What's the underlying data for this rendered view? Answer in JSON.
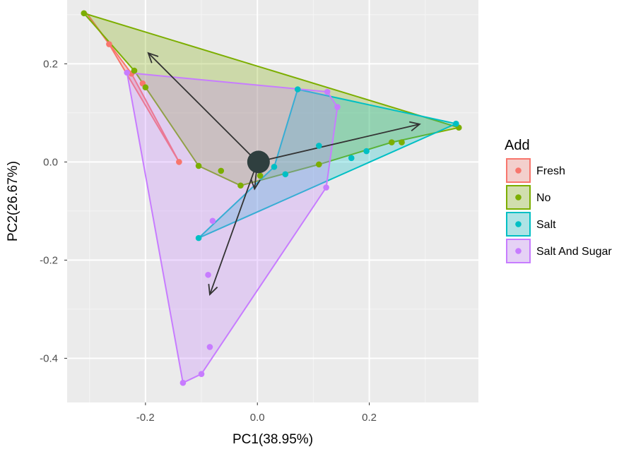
{
  "chart_data": {
    "type": "scatter",
    "subtype": "pca-biplot",
    "xlabel": "PC1(38.95%)",
    "ylabel": "PC2(26.67%)",
    "xlim": [
      -0.34,
      0.395
    ],
    "ylim": [
      -0.49,
      0.33
    ],
    "xticks": [
      -0.2,
      0.0,
      0.2
    ],
    "xtick_labels": [
      "-0.2",
      "0.0",
      "0.2"
    ],
    "yticks": [
      0.2,
      0.0,
      -0.2,
      -0.4
    ],
    "ytick_labels": [
      "0.2",
      "0.0",
      "-0.2",
      "-0.4"
    ],
    "grid": true,
    "legend": {
      "title": "Add",
      "position": "right"
    },
    "series": [
      {
        "name": "Fresh",
        "color": "#F8766D",
        "points": [
          [
            -0.265,
            0.24
          ],
          [
            -0.225,
            0.18
          ],
          [
            -0.205,
            0.16
          ],
          [
            -0.14,
            0.0
          ]
        ],
        "hull": [
          [
            -0.305,
            0.303
          ],
          [
            -0.265,
            0.24
          ],
          [
            -0.14,
            0.0
          ],
          [
            -0.225,
            0.18
          ]
        ]
      },
      {
        "name": "No",
        "color": "#7CAE00",
        "points": [
          [
            -0.31,
            0.303
          ],
          [
            -0.22,
            0.186
          ],
          [
            -0.2,
            0.152
          ],
          [
            -0.105,
            -0.008
          ],
          [
            -0.065,
            -0.018
          ],
          [
            -0.03,
            -0.048
          ],
          [
            0.005,
            -0.028
          ],
          [
            0.11,
            -0.005
          ],
          [
            0.24,
            0.04
          ],
          [
            0.258,
            0.04
          ],
          [
            0.36,
            0.07
          ]
        ],
        "hull": [
          [
            -0.31,
            0.303
          ],
          [
            0.36,
            0.07
          ],
          [
            0.24,
            0.04
          ],
          [
            0.11,
            -0.005
          ],
          [
            -0.03,
            -0.048
          ],
          [
            -0.105,
            -0.008
          ],
          [
            -0.22,
            0.186
          ]
        ]
      },
      {
        "name": "Salt",
        "color": "#00BFC4",
        "points": [
          [
            0.072,
            0.148
          ],
          [
            0.05,
            -0.025
          ],
          [
            0.11,
            0.033
          ],
          [
            0.168,
            0.008
          ],
          [
            0.195,
            0.022
          ],
          [
            0.355,
            0.078
          ],
          [
            -0.105,
            -0.155
          ],
          [
            0.03,
            -0.01
          ]
        ],
        "hull": [
          [
            0.072,
            0.148
          ],
          [
            0.355,
            0.078
          ],
          [
            -0.105,
            -0.155
          ],
          [
            0.03,
            -0.01
          ]
        ]
      },
      {
        "name": "Salt And Sugar",
        "color": "#C77CFF",
        "points": [
          [
            -0.233,
            0.182
          ],
          [
            0.125,
            0.143
          ],
          [
            0.143,
            0.112
          ],
          [
            0.123,
            -0.052
          ],
          [
            -0.08,
            -0.12
          ],
          [
            -0.088,
            -0.23
          ],
          [
            -0.085,
            -0.377
          ],
          [
            -0.1,
            -0.432
          ],
          [
            -0.133,
            -0.45
          ]
        ],
        "hull": [
          [
            -0.233,
            0.182
          ],
          [
            0.125,
            0.143
          ],
          [
            0.143,
            0.112
          ],
          [
            0.123,
            -0.052
          ],
          [
            -0.1,
            -0.432
          ],
          [
            -0.133,
            -0.45
          ]
        ]
      }
    ],
    "center_point": [
      0.002,
      0.0
    ],
    "arrows": [
      {
        "from": [
          0.0,
          0.0
        ],
        "to": [
          -0.195,
          0.222
        ]
      },
      {
        "from": [
          0.0,
          0.0
        ],
        "to": [
          0.29,
          0.077
        ]
      },
      {
        "from": [
          0.0,
          0.0
        ],
        "to": [
          -0.085,
          -0.27
        ]
      },
      {
        "from": [
          0.0,
          0.0
        ],
        "to": [
          -0.005,
          -0.055
        ]
      }
    ]
  }
}
